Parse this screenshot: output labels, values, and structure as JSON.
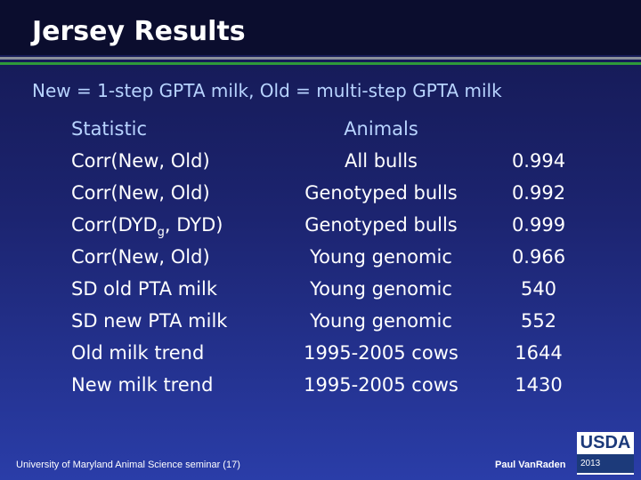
{
  "header": {
    "title": "Jersey Results"
  },
  "subtitle": "New = 1-step GPTA milk, Old = multi-step GPTA milk",
  "table": {
    "columns": {
      "statistic": "Statistic",
      "animals": "Animals"
    },
    "rows": [
      {
        "statistic": "Corr(New, Old)",
        "animals": "All bulls",
        "value": 0.994
      },
      {
        "statistic": "Corr(New, Old)",
        "animals": "Genotyped bulls",
        "value": 0.992
      },
      {
        "statistic": [
          "Corr(DYD",
          "g",
          ", DYD)"
        ],
        "animals": "Genotyped bulls",
        "value": 0.999
      },
      {
        "statistic": "Corr(New, Old)",
        "animals": "Young genomic",
        "value": 0.966
      },
      {
        "statistic": "SD old PTA milk",
        "animals": "Young genomic",
        "value": 540
      },
      {
        "statistic": "SD new PTA milk",
        "animals": "Young genomic",
        "value": 552
      },
      {
        "statistic": "Old milk trend",
        "animals": "1995-2005 cows",
        "value": 1644
      },
      {
        "statistic": "New milk trend",
        "animals": "1995-2005 cows",
        "value": 1430
      }
    ]
  },
  "footer": {
    "left": "University of Maryland Animal Science seminar (17)",
    "right": "Paul VanRaden",
    "logo": {
      "name": "USDA",
      "year": "2013"
    }
  }
}
